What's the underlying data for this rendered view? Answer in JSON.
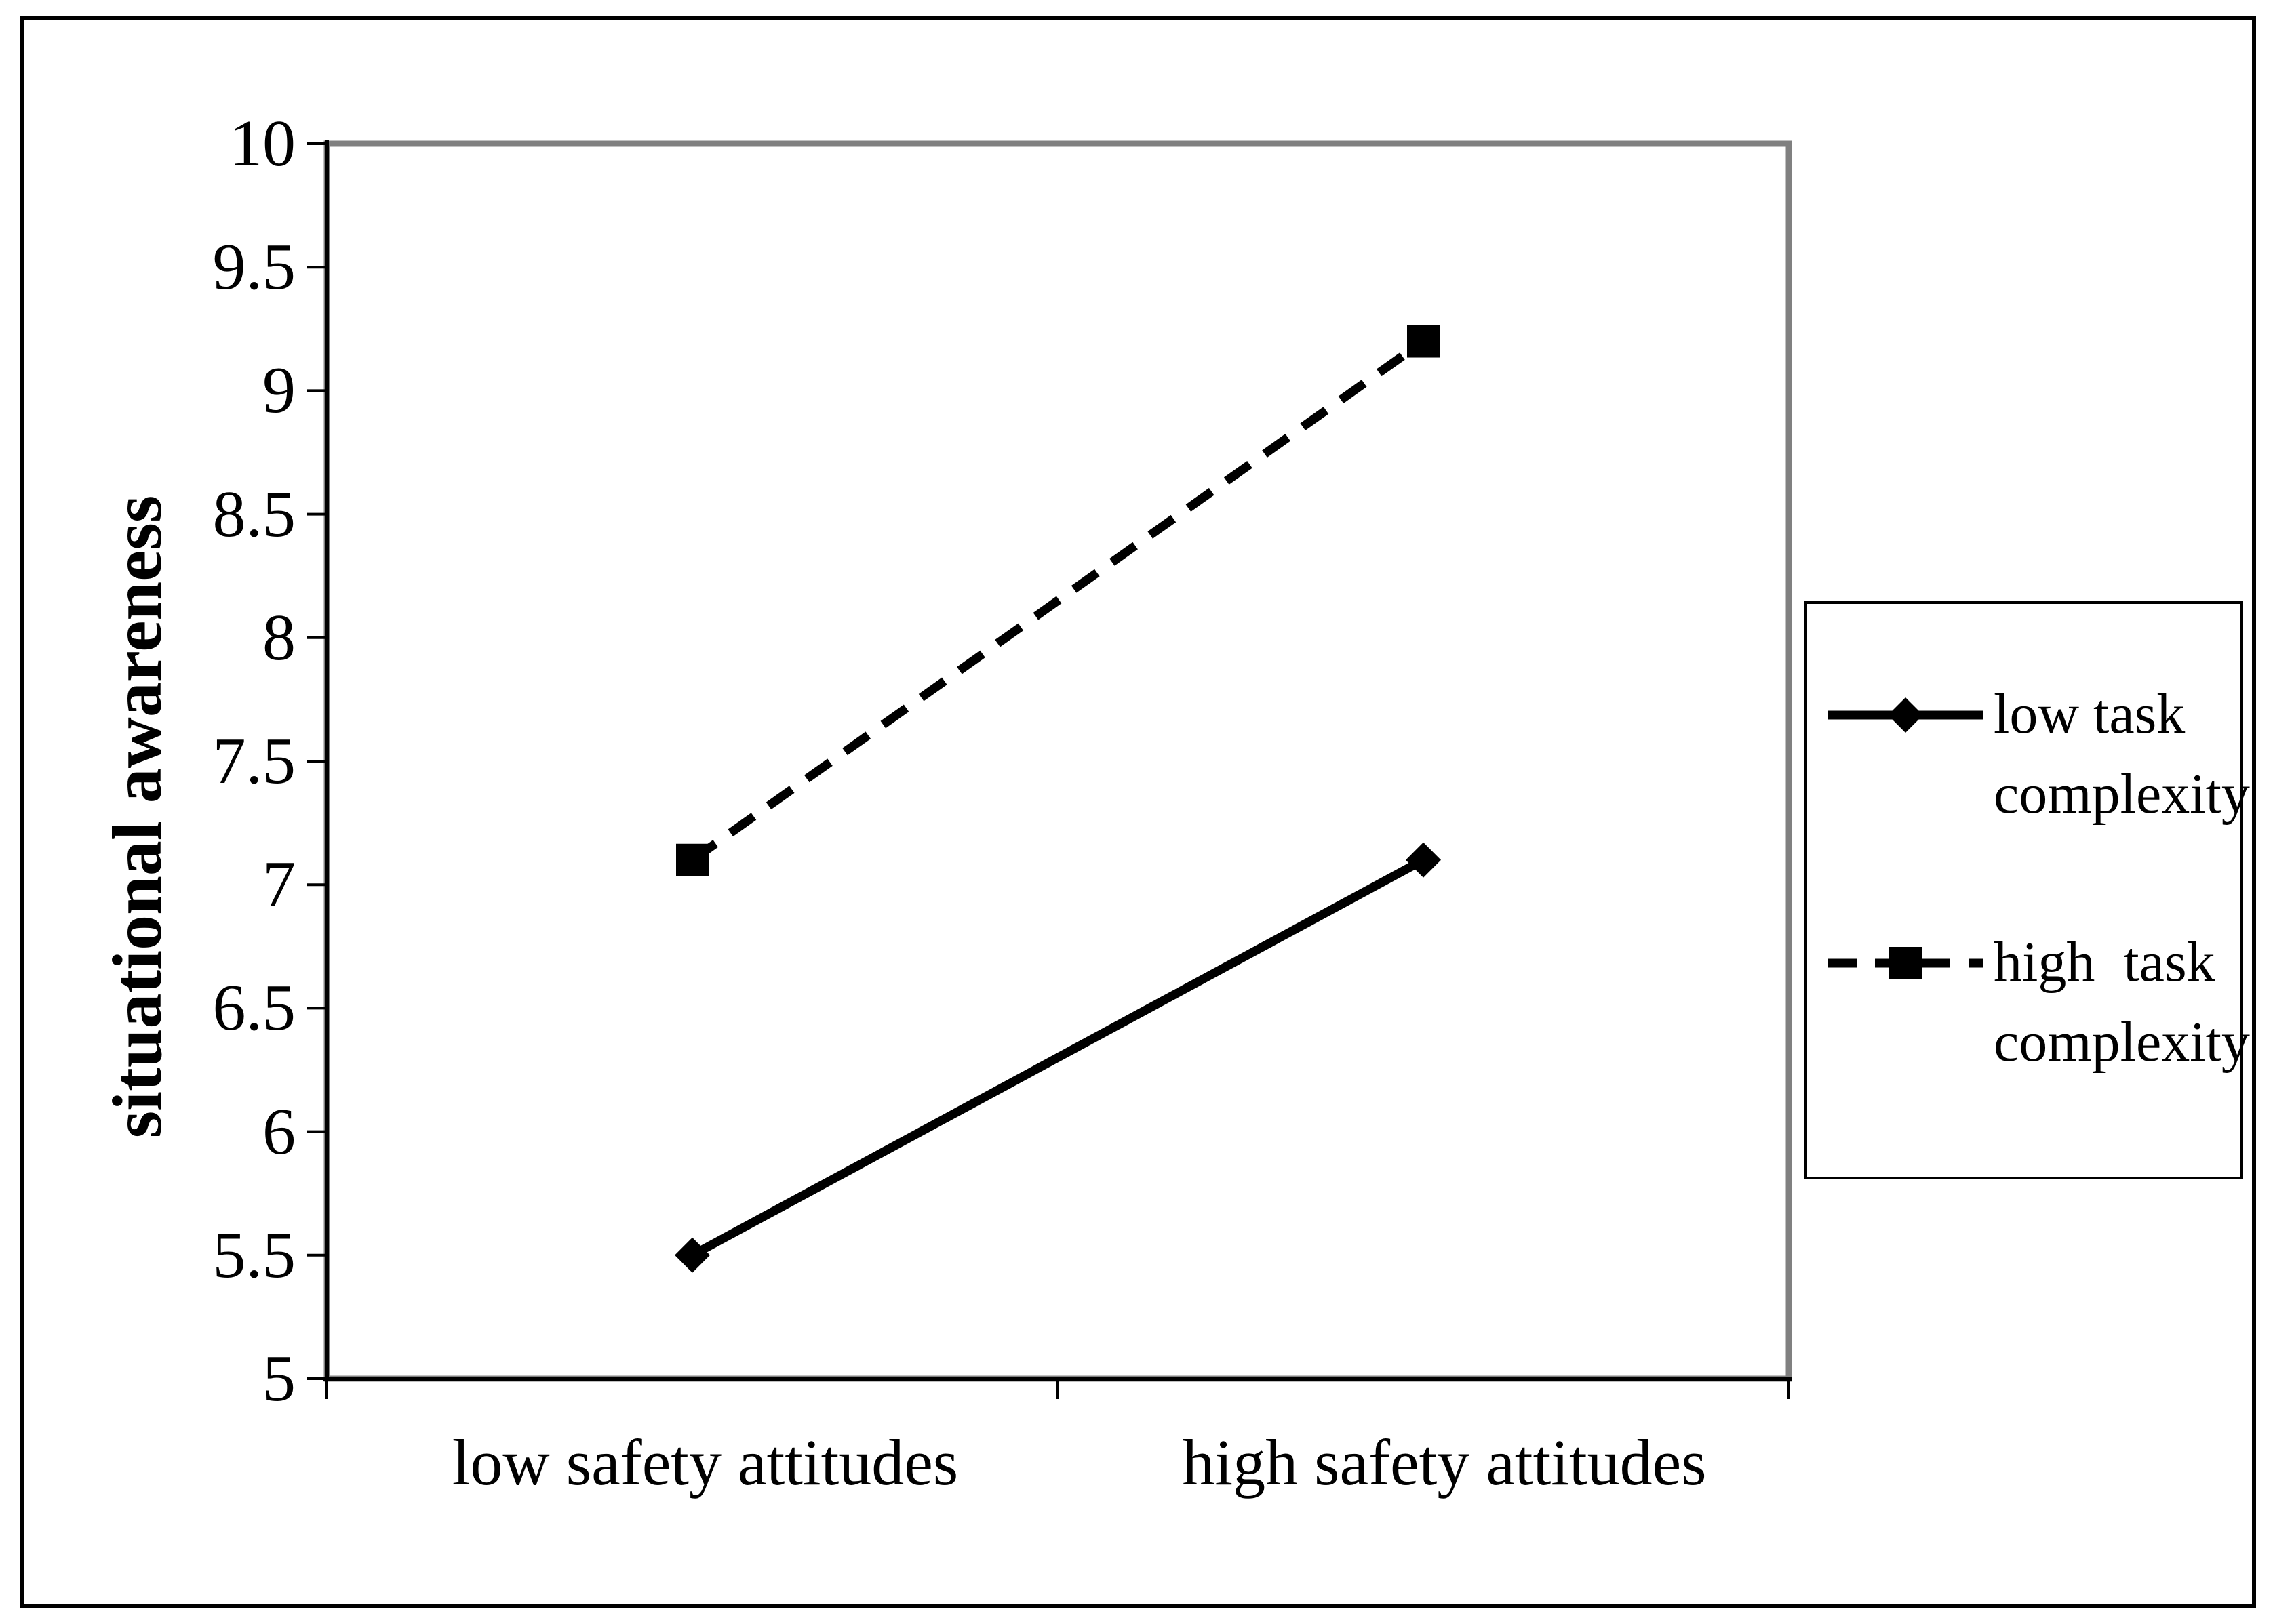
{
  "figure": {
    "background": "#ffffff",
    "outer_border_color": "#000000",
    "plot_border_color": "#808080",
    "axis_color": "#000000"
  },
  "legend": {
    "position": "right",
    "items": [
      {
        "line1": "low task",
        "line2": "complexity",
        "marker": "diamond",
        "line_style": "solid"
      },
      {
        "line1": "high  task",
        "line2": "complexity",
        "marker": "square",
        "line_style": "dashed"
      }
    ]
  },
  "chart_data": {
    "type": "line",
    "categories": [
      "low safety attitudes",
      "high safety attitudes"
    ],
    "series": [
      {
        "name": "low task complexity",
        "values": [
          5.5,
          7.1
        ],
        "marker": "diamond",
        "line_style": "solid",
        "color": "#000000"
      },
      {
        "name": "high task complexity",
        "values": [
          7.1,
          9.2
        ],
        "marker": "square",
        "line_style": "dashed",
        "color": "#000000"
      }
    ],
    "title": "",
    "xlabel": "",
    "ylabel": "situational awareness",
    "ylim": [
      5,
      10
    ],
    "ytick_step": 0.5,
    "ytick_labels": [
      "5",
      "5.5",
      "6",
      "6.5",
      "7",
      "7.5",
      "8",
      "8.5",
      "9",
      "9.5",
      "10"
    ],
    "grid": false,
    "legend_position": "right"
  }
}
